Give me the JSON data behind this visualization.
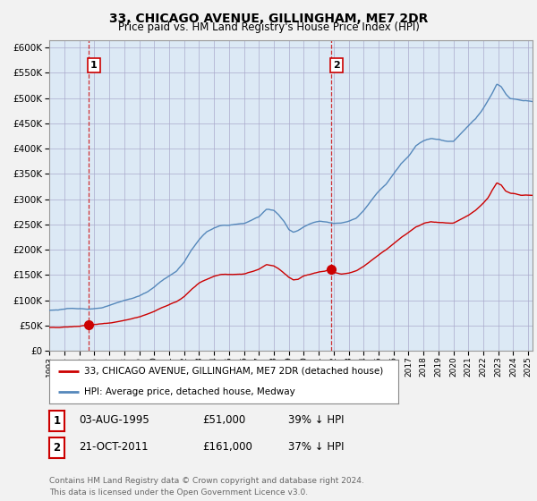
{
  "title": "33, CHICAGO AVENUE, GILLINGHAM, ME7 2DR",
  "subtitle": "Price paid vs. HM Land Registry's House Price Index (HPI)",
  "yticks": [
    0,
    50000,
    100000,
    150000,
    200000,
    250000,
    300000,
    350000,
    400000,
    450000,
    500000,
    550000,
    600000
  ],
  "ylim": [
    0,
    615000
  ],
  "xlim_start": 1993.0,
  "xlim_end": 2025.3,
  "background_color": "#f2f2f2",
  "plot_background": "#dce9f5",
  "grid_color": "#aaaacc",
  "red_line_color": "#cc0000",
  "blue_line_color": "#5588bb",
  "annotation_color": "#cc0000",
  "sale1_x": 1995.6,
  "sale1_y": 51000,
  "sale2_x": 2011.8,
  "sale2_y": 161000,
  "legend_line1": "33, CHICAGO AVENUE, GILLINGHAM, ME7 2DR (detached house)",
  "legend_line2": "HPI: Average price, detached house, Medway",
  "table_row1": [
    "1",
    "03-AUG-1995",
    "£51,000",
    "39% ↓ HPI"
  ],
  "table_row2": [
    "2",
    "21-OCT-2011",
    "£161,000",
    "37% ↓ HPI"
  ],
  "footer": "Contains HM Land Registry data © Crown copyright and database right 2024.\nThis data is licensed under the Open Government Licence v3.0.",
  "xticks": [
    1993,
    1994,
    1995,
    1996,
    1997,
    1998,
    1999,
    2000,
    2001,
    2002,
    2003,
    2004,
    2005,
    2006,
    2007,
    2008,
    2009,
    2010,
    2011,
    2012,
    2013,
    2014,
    2015,
    2016,
    2017,
    2018,
    2019,
    2020,
    2021,
    2022,
    2023,
    2024,
    2025
  ]
}
